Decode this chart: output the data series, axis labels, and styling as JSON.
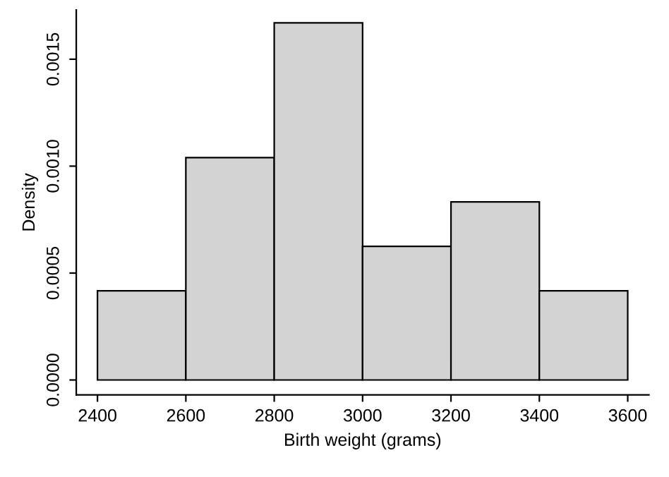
{
  "chart_data": {
    "type": "histogram",
    "xlabel": "Birth weight (grams)",
    "ylabel": "Density",
    "bins": [
      2400,
      2600,
      2800,
      3000,
      3200,
      3400,
      3600
    ],
    "values": [
      0.000417,
      0.00104,
      0.00167,
      0.000625,
      0.000833,
      0.000417
    ],
    "color": "#d3d3d3",
    "xlim": [
      2352,
      3648
    ],
    "xticks": [
      2400,
      2600,
      2800,
      3000,
      3200,
      3400,
      3600
    ],
    "ylim": [
      -7e-05,
      0.00173
    ],
    "yticks": [
      {
        "value": 0,
        "label": "0.0000"
      },
      {
        "value": 0.0005,
        "label": "0.0005"
      },
      {
        "value": 0.001,
        "label": "0.0010"
      },
      {
        "value": 0.0015,
        "label": "0.0015"
      }
    ],
    "grid": false,
    "legend": false
  }
}
